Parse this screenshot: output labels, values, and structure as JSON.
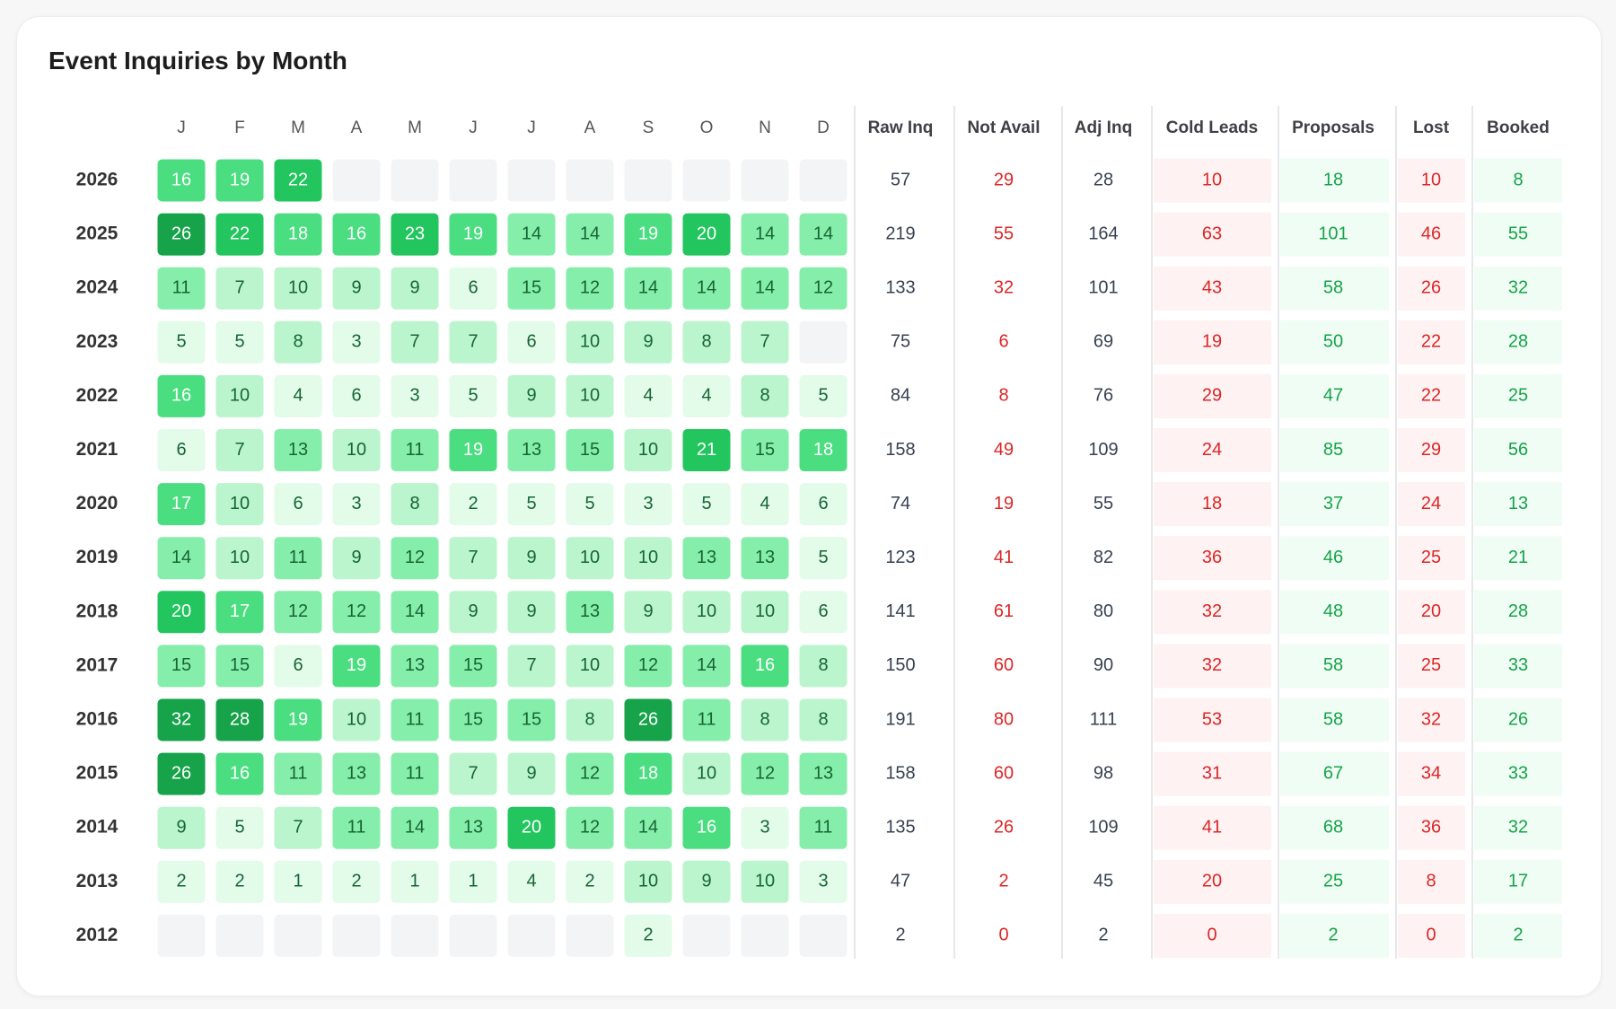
{
  "title": "Event Inquiries by Month",
  "chart_data": {
    "type": "heatmap",
    "title": "Event Inquiries by Month",
    "months": [
      "J",
      "F",
      "M",
      "A",
      "M",
      "J",
      "J",
      "A",
      "S",
      "O",
      "N",
      "D"
    ],
    "years": [
      "2026",
      "2025",
      "2024",
      "2023",
      "2022",
      "2021",
      "2020",
      "2019",
      "2018",
      "2017",
      "2016",
      "2015",
      "2014",
      "2013",
      "2012"
    ],
    "values": [
      [
        16,
        19,
        22,
        null,
        null,
        null,
        null,
        null,
        null,
        null,
        null,
        null
      ],
      [
        26,
        22,
        18,
        16,
        23,
        19,
        14,
        14,
        19,
        20,
        14,
        14
      ],
      [
        11,
        7,
        10,
        9,
        9,
        6,
        15,
        12,
        14,
        14,
        14,
        12
      ],
      [
        5,
        5,
        8,
        3,
        7,
        7,
        6,
        10,
        9,
        8,
        7,
        null
      ],
      [
        16,
        10,
        4,
        6,
        3,
        5,
        9,
        10,
        4,
        4,
        8,
        5
      ],
      [
        6,
        7,
        13,
        10,
        11,
        19,
        13,
        15,
        10,
        21,
        15,
        18
      ],
      [
        17,
        10,
        6,
        3,
        8,
        2,
        5,
        5,
        3,
        5,
        4,
        6
      ],
      [
        14,
        10,
        11,
        9,
        12,
        7,
        9,
        10,
        10,
        13,
        13,
        5
      ],
      [
        20,
        17,
        12,
        12,
        14,
        9,
        9,
        13,
        9,
        10,
        10,
        6
      ],
      [
        15,
        15,
        6,
        19,
        13,
        15,
        7,
        10,
        12,
        14,
        16,
        8
      ],
      [
        32,
        28,
        19,
        10,
        11,
        15,
        15,
        8,
        26,
        11,
        8,
        8
      ],
      [
        26,
        16,
        11,
        13,
        11,
        7,
        9,
        12,
        18,
        10,
        12,
        13
      ],
      [
        9,
        5,
        7,
        11,
        14,
        13,
        20,
        12,
        14,
        16,
        3,
        11
      ],
      [
        2,
        2,
        1,
        2,
        1,
        1,
        4,
        2,
        10,
        9,
        10,
        3
      ],
      [
        null,
        null,
        null,
        null,
        null,
        null,
        null,
        null,
        2,
        null,
        null,
        null
      ]
    ],
    "summary_columns": [
      {
        "label": "Raw Inq",
        "tone": "neutral"
      },
      {
        "label": "Not Avail",
        "tone": "red-text"
      },
      {
        "label": "Adj Inq",
        "tone": "neutral"
      },
      {
        "label": "Cold Leads",
        "tone": "red"
      },
      {
        "label": "Proposals",
        "tone": "green"
      },
      {
        "label": "Lost",
        "tone": "red"
      },
      {
        "label": "Booked",
        "tone": "green"
      }
    ],
    "summary": [
      [
        57,
        29,
        28,
        10,
        18,
        10,
        8
      ],
      [
        219,
        55,
        164,
        63,
        101,
        46,
        55
      ],
      [
        133,
        32,
        101,
        43,
        58,
        26,
        32
      ],
      [
        75,
        6,
        69,
        19,
        50,
        22,
        28
      ],
      [
        84,
        8,
        76,
        29,
        47,
        22,
        25
      ],
      [
        158,
        49,
        109,
        24,
        85,
        29,
        56
      ],
      [
        74,
        19,
        55,
        18,
        37,
        24,
        13
      ],
      [
        123,
        41,
        82,
        36,
        46,
        25,
        21
      ],
      [
        141,
        61,
        80,
        32,
        48,
        20,
        28
      ],
      [
        150,
        60,
        90,
        32,
        58,
        25,
        33
      ],
      [
        191,
        80,
        111,
        53,
        58,
        32,
        26
      ],
      [
        158,
        60,
        98,
        31,
        67,
        34,
        33
      ],
      [
        135,
        26,
        109,
        41,
        68,
        36,
        32
      ],
      [
        47,
        2,
        45,
        20,
        25,
        8,
        17
      ],
      [
        2,
        0,
        2,
        0,
        2,
        0,
        2
      ]
    ]
  },
  "colors": {
    "empty": "#f3f4f6",
    "heat": [
      "#e3fbe9",
      "#bbf5cd",
      "#86eeab",
      "#4ade80",
      "#22c55e",
      "#16a34a"
    ],
    "text_dark": "#166534",
    "text_light": "#ffffff",
    "neutral_text": "#374151",
    "red_text": "#dc2626",
    "red_bg": "#fef2f2",
    "green_text": "#16a34a",
    "green_bg": "#f0fdf4"
  }
}
